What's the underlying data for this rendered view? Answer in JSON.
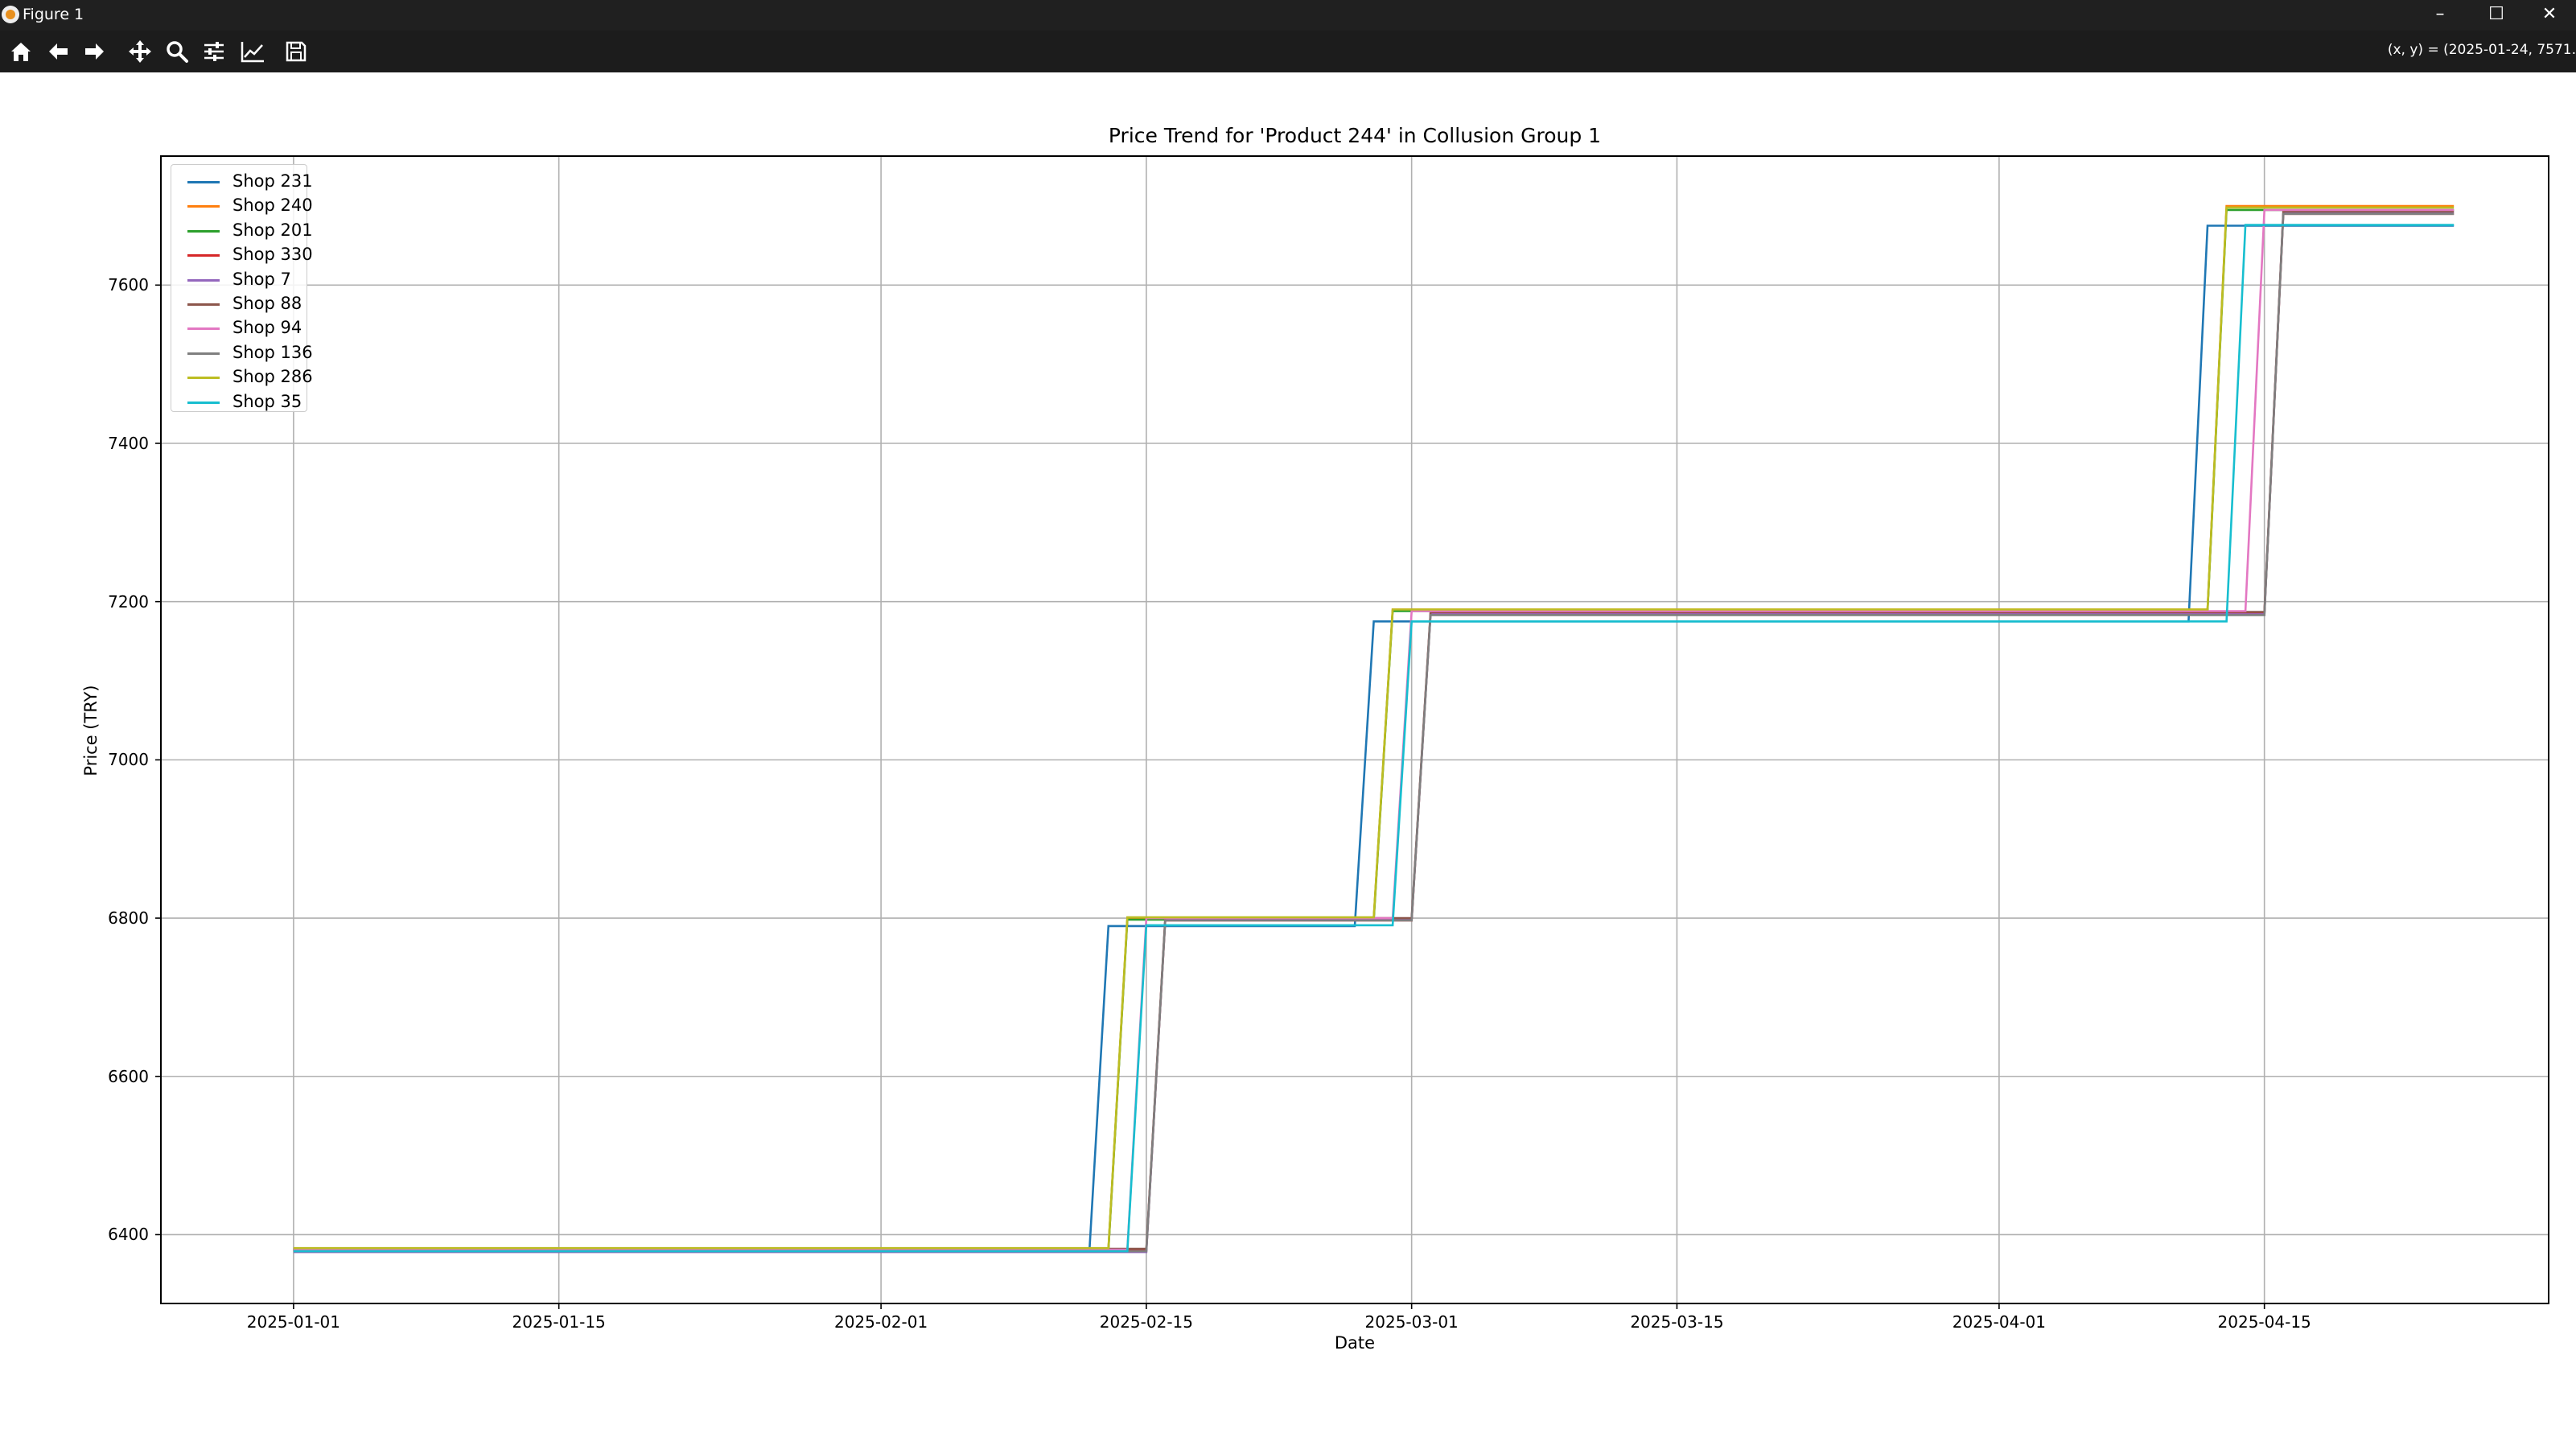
{
  "window": {
    "title": "Figure 1",
    "minimize_glyph": "–",
    "maximize_glyph": "☐",
    "close_glyph": "✕"
  },
  "toolbar": {
    "buttons": [
      "home-icon",
      "back-icon",
      "forward-icon",
      "pan-icon",
      "zoom-icon",
      "configure-subplots-icon",
      "edit-axis-icon",
      "save-icon"
    ],
    "coords": "(x, y) = (2025-01-24, 7571."
  },
  "chart_data": {
    "type": "line",
    "title": "Price Trend for 'Product 244' in Collusion Group 1",
    "xlabel": "Date",
    "ylabel": "Price (TRY)",
    "xlim": [
      "2024-12-25",
      "2025-04-30"
    ],
    "ylim": [
      6313,
      7763
    ],
    "x_ticks": [
      "2025-01-01",
      "2025-01-15",
      "2025-02-01",
      "2025-02-15",
      "2025-03-01",
      "2025-03-15",
      "2025-04-01",
      "2025-04-15"
    ],
    "y_ticks": [
      6400,
      6600,
      6800,
      7000,
      7200,
      7400,
      7600
    ],
    "grid": true,
    "legend_position": "upper-left",
    "x_start": "2025-01-01",
    "x_end": "2025-04-25",
    "series": [
      {
        "name": "Shop 231",
        "color": "#1f77b4",
        "values": [
          6380,
          6790,
          7175,
          7675
        ],
        "changes": [
          "2025-02-13",
          "2025-02-27",
          "2025-04-12"
        ]
      },
      {
        "name": "Shop 240",
        "color": "#ff7f0e",
        "values": [
          6382,
          6800,
          7190,
          7700
        ],
        "changes": [
          "2025-02-14",
          "2025-02-28",
          "2025-04-13"
        ]
      },
      {
        "name": "Shop 201",
        "color": "#2ca02c",
        "values": [
          6381,
          6798,
          7188,
          7695
        ],
        "changes": [
          "2025-02-14",
          "2025-02-28",
          "2025-04-13"
        ]
      },
      {
        "name": "Shop 330",
        "color": "#d62728",
        "values": [
          6380,
          6797,
          7185,
          7690
        ],
        "changes": [
          "2025-02-16",
          "2025-03-02",
          "2025-04-16"
        ]
      },
      {
        "name": "Shop 7",
        "color": "#9467bd",
        "values": [
          6378,
          6798,
          7184,
          7692
        ],
        "changes": [
          "2025-02-16",
          "2025-03-02",
          "2025-04-16"
        ]
      },
      {
        "name": "Shop 88",
        "color": "#8c564b",
        "values": [
          6382,
          6800,
          7187,
          7693
        ],
        "changes": [
          "2025-02-16",
          "2025-03-02",
          "2025-04-16"
        ]
      },
      {
        "name": "Shop 94",
        "color": "#e377c2",
        "values": [
          6381,
          6800,
          7188,
          7695
        ],
        "changes": [
          "2025-02-15",
          "2025-03-01",
          "2025-04-15"
        ]
      },
      {
        "name": "Shop 136",
        "color": "#7f7f7f",
        "values": [
          6379,
          6797,
          7183,
          7690
        ],
        "changes": [
          "2025-02-16",
          "2025-03-02",
          "2025-04-16"
        ]
      },
      {
        "name": "Shop 286",
        "color": "#bcbd22",
        "values": [
          6383,
          6801,
          7190,
          7698
        ],
        "changes": [
          "2025-02-14",
          "2025-02-28",
          "2025-04-13"
        ]
      },
      {
        "name": "Shop 35",
        "color": "#17becf",
        "values": [
          6379,
          6791,
          7175,
          7676
        ],
        "changes": [
          "2025-02-15",
          "2025-02-29",
          "2025-04-14"
        ]
      }
    ]
  }
}
